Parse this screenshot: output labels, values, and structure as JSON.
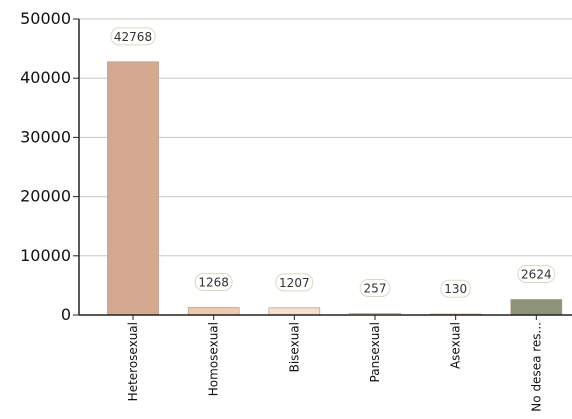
{
  "chart_data": {
    "type": "bar",
    "categories": [
      "Heterosexual",
      "Homosexual",
      "Bisexual",
      "Pansexual",
      "Asexual",
      "No desea res..."
    ],
    "values": [
      42768,
      1268,
      1207,
      257,
      130,
      2624
    ],
    "data_labels": [
      "42768",
      "1268",
      "1207",
      "257",
      "130",
      "2624"
    ],
    "colors": [
      "#d4a990",
      "#edc9b0",
      "#f7dfcf",
      "#f3ede6",
      "#ece7e1",
      "#8e9479"
    ],
    "ylim": [
      0,
      50000
    ],
    "yticks": [
      0,
      10000,
      20000,
      30000,
      40000,
      50000
    ],
    "ytick_labels": [
      "0",
      "10000",
      "20000",
      "30000",
      "40000",
      "50000"
    ],
    "title": "",
    "xlabel": "",
    "ylabel": "",
    "grid": true,
    "legend": "none"
  }
}
